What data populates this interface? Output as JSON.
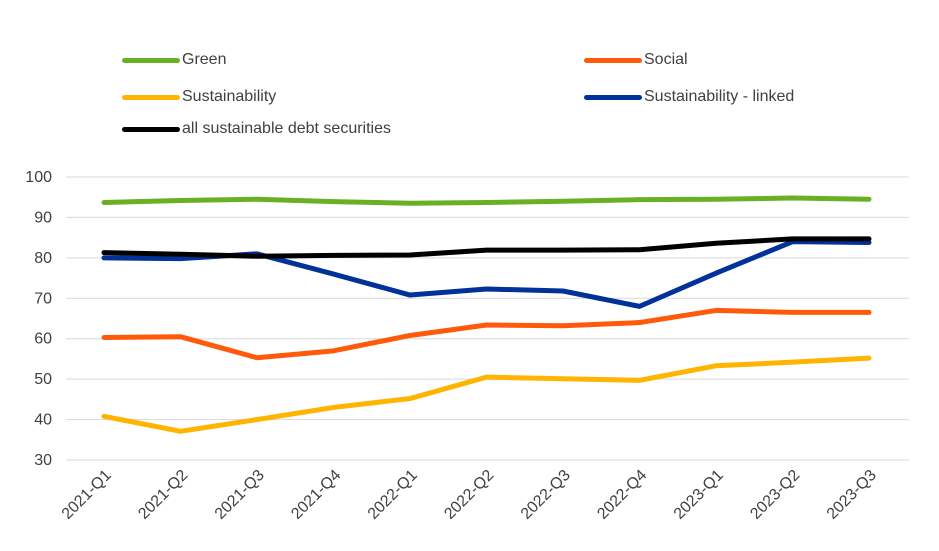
{
  "chart_data": {
    "type": "line",
    "categories": [
      "2021-Q1",
      "2021-Q2",
      "2021-Q3",
      "2021-Q4",
      "2022-Q1",
      "2022-Q2",
      "2022-Q3",
      "2022-Q4",
      "2023-Q1",
      "2023-Q2",
      "2023-Q3"
    ],
    "ylim": [
      30,
      100
    ],
    "yticks": [
      30,
      40,
      50,
      60,
      70,
      80,
      90,
      100
    ],
    "grid": true,
    "legend_position": "top",
    "series": [
      {
        "name": "Green",
        "color": "#6ab023",
        "values": [
          93.7,
          94.2,
          94.5,
          93.9,
          93.5,
          93.7,
          94.0,
          94.4,
          94.5,
          94.8,
          94.5
        ]
      },
      {
        "name": "Social",
        "color": "#ff5a0a",
        "values": [
          60.3,
          60.5,
          55.3,
          57.0,
          60.8,
          63.4,
          63.2,
          64.0,
          67.0,
          66.5,
          66.5
        ]
      },
      {
        "name": "Sustainability",
        "color": "#ffb400",
        "values": [
          40.8,
          37.1,
          40.0,
          43.0,
          45.2,
          50.5,
          50.1,
          49.7,
          53.3,
          54.2,
          55.2
        ]
      },
      {
        "name": "Sustainability - linked",
        "color": "#003299",
        "values": [
          80.0,
          79.8,
          81.0,
          76.0,
          70.8,
          72.3,
          71.8,
          68.0,
          76.2,
          84.0,
          83.8
        ]
      },
      {
        "name": "all sustainable debt securities",
        "color": "#000000",
        "values": [
          81.3,
          80.9,
          80.4,
          80.6,
          80.7,
          81.9,
          81.9,
          82.0,
          83.6,
          84.7,
          84.7
        ]
      }
    ]
  }
}
